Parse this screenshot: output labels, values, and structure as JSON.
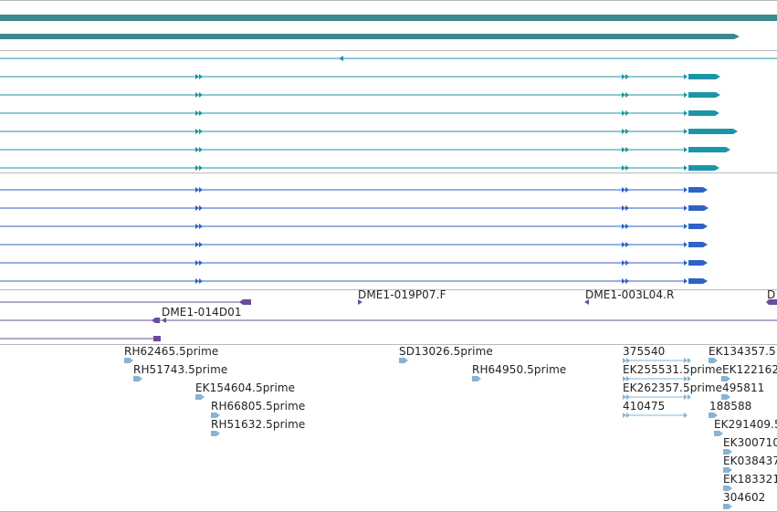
{
  "colors": {
    "assembly": "#3a8a8c",
    "transcript": "#1b96a8",
    "gene": "#2f62c6",
    "clone": "#6b4c9a",
    "est": "#86b4d2",
    "divider": "#b9b9b9"
  },
  "clones": {
    "labels": [
      "DME1-019P07.F",
      "DME1-003L04.R",
      "D",
      "DME1-014D01"
    ]
  },
  "ests": {
    "labels": [
      "RH62465.5prime",
      "RH51743.5prime",
      "EK154604.5prime",
      "RH66805.5prime",
      "RH51632.5prime",
      "SD13026.5prime",
      "RH64950.5prime",
      "375540",
      "EK255531.5prime",
      "EK262357.5prime",
      "410475",
      "EK134357.5",
      "EK122162",
      "495811",
      "188588",
      "EK291409.5",
      "EK300710",
      "EK038437",
      "EK183321",
      "304602"
    ]
  }
}
